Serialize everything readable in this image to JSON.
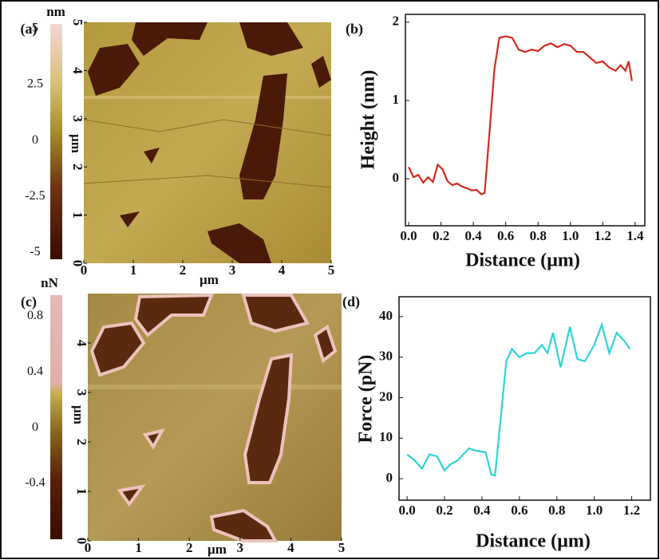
{
  "chart_data": [
    {
      "type": "image",
      "panel": "(a)",
      "xlabel": "µm",
      "ylabel": "µm",
      "xlim": [
        0,
        5
      ],
      "ylim": [
        0,
        5
      ],
      "xticks": [
        0,
        1,
        2,
        3,
        4,
        5
      ],
      "yticks": [
        0,
        1,
        2,
        3,
        4,
        5
      ],
      "colorbar": {
        "unit": "nm",
        "lim": [
          -5.3,
          5.2
        ],
        "ticks": [
          5,
          2.5,
          0,
          -2.5,
          -5
        ]
      }
    },
    {
      "type": "line",
      "panel": "(b)",
      "xlabel": "Distance (µm)",
      "ylabel": "Height (nm)",
      "xlim": [
        -0.02,
        1.46
      ],
      "ylim": [
        -0.6,
        2.1
      ],
      "xticks": [
        {
          "value": 0,
          "label": "0.0"
        },
        {
          "value": 0.2,
          "label": "0.2"
        },
        {
          "value": 0.4,
          "label": "0.4"
        },
        {
          "value": 0.6,
          "label": "0.6"
        },
        {
          "value": 0.8,
          "label": "0.8"
        },
        {
          "value": 1,
          "label": "1.0"
        },
        {
          "value": 1.2,
          "label": "1.2"
        },
        {
          "value": 1.4,
          "label": "1.4"
        }
      ],
      "yticks": [
        0,
        1,
        2
      ],
      "x": [
        0,
        0.03,
        0.06,
        0.09,
        0.12,
        0.15,
        0.18,
        0.21,
        0.24,
        0.27,
        0.3,
        0.33,
        0.36,
        0.39,
        0.42,
        0.45,
        0.47,
        0.5,
        0.53,
        0.56,
        0.6,
        0.64,
        0.68,
        0.72,
        0.76,
        0.8,
        0.84,
        0.88,
        0.92,
        0.96,
        1.0,
        1.04,
        1.08,
        1.12,
        1.16,
        1.2,
        1.24,
        1.28,
        1.31,
        1.34,
        1.36,
        1.38
      ],
      "series": [
        {
          "color": "#d42a1f",
          "values": [
            0.15,
            0.02,
            0.05,
            -0.05,
            0.02,
            -0.04,
            0.18,
            0.12,
            -0.03,
            -0.08,
            -0.06,
            -0.1,
            -0.12,
            -0.15,
            -0.14,
            -0.2,
            -0.18,
            0.6,
            1.4,
            1.8,
            1.82,
            1.8,
            1.65,
            1.62,
            1.65,
            1.63,
            1.7,
            1.73,
            1.68,
            1.72,
            1.7,
            1.62,
            1.62,
            1.55,
            1.48,
            1.5,
            1.42,
            1.38,
            1.45,
            1.38,
            1.5,
            1.25
          ]
        }
      ]
    },
    {
      "type": "image",
      "panel": "(c)",
      "xlabel": "µm",
      "ylabel": "µm",
      "xlim": [
        0,
        5
      ],
      "ylim": [
        0,
        5
      ],
      "xticks": [
        0,
        1,
        2,
        3,
        4,
        5
      ],
      "yticks": [
        0,
        1,
        2,
        3,
        4
      ],
      "colorbar": {
        "unit": "nN",
        "lim": [
          -0.8,
          0.95
        ],
        "ticks": [
          0.8,
          0.4,
          0,
          -0.4
        ]
      }
    },
    {
      "type": "line",
      "panel": "(d)",
      "xlabel": "Distance (µm)",
      "ylabel": "Force (pN)",
      "xlim": [
        -0.043,
        1.3
      ],
      "ylim": [
        -5.3,
        44.9
      ],
      "xticks": [
        {
          "value": 0,
          "label": "0.0"
        },
        {
          "value": 0.2,
          "label": "0.2"
        },
        {
          "value": 0.4,
          "label": "0.4"
        },
        {
          "value": 0.6,
          "label": "0.6"
        },
        {
          "value": 0.8,
          "label": "0.8"
        },
        {
          "value": 1,
          "label": "1.0"
        },
        {
          "value": 1.2,
          "label": "1.2"
        }
      ],
      "yticks": [
        0,
        10,
        20,
        30,
        40
      ],
      "x": [
        0,
        0.04,
        0.08,
        0.12,
        0.16,
        0.2,
        0.23,
        0.27,
        0.33,
        0.36,
        0.42,
        0.45,
        0.47,
        0.53,
        0.56,
        0.6,
        0.64,
        0.68,
        0.72,
        0.75,
        0.78,
        0.82,
        0.87,
        0.91,
        0.95,
        1.0,
        1.04,
        1.08,
        1.12,
        1.16,
        1.19
      ],
      "series": [
        {
          "color": "#2ed4d4",
          "values": [
            6,
            4.5,
            2.5,
            6,
            5.5,
            2,
            3.5,
            4.5,
            7.5,
            7,
            6.5,
            1,
            0.8,
            29,
            32,
            30,
            31,
            31,
            33,
            31,
            36,
            27.5,
            37.5,
            29.5,
            29,
            33,
            38,
            31,
            36,
            34,
            32
          ]
        }
      ]
    }
  ]
}
